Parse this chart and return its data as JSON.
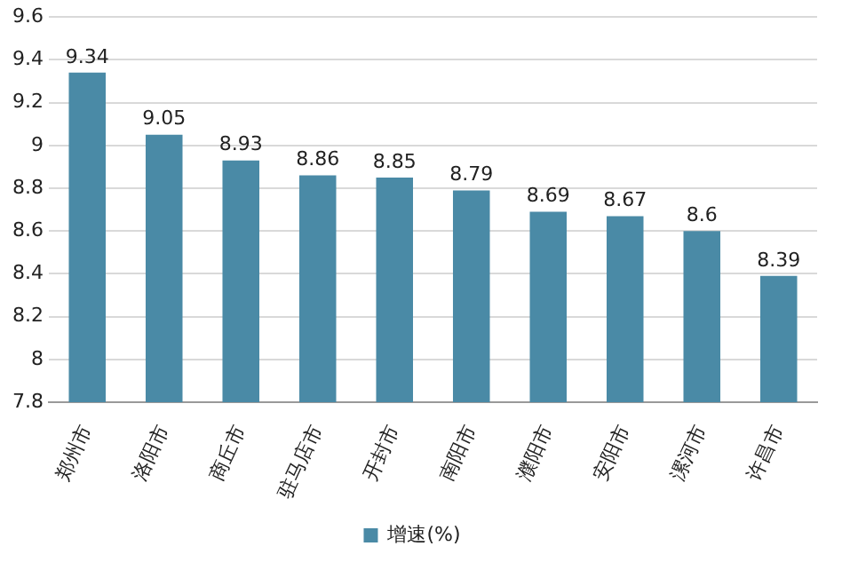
{
  "chart_data": {
    "type": "bar",
    "categories": [
      "郑州市",
      "洛阳市",
      "商丘市",
      "驻马店市",
      "开封市",
      "南阳市",
      "濮阳市",
      "安阳市",
      "漯河市",
      "许昌市"
    ],
    "series": [
      {
        "name": "增速(%)",
        "color": "#4a8aa6",
        "values": [
          9.34,
          9.05,
          8.93,
          8.86,
          8.85,
          8.79,
          8.69,
          8.67,
          8.6,
          8.39
        ]
      }
    ],
    "ylim": [
      7.8,
      9.6
    ],
    "yticks": [
      7.8,
      8,
      8.2,
      8.4,
      8.6,
      8.8,
      9,
      9.2,
      9.4,
      9.6
    ],
    "grid": "y",
    "legend": "bottom",
    "data_labels": true
  }
}
